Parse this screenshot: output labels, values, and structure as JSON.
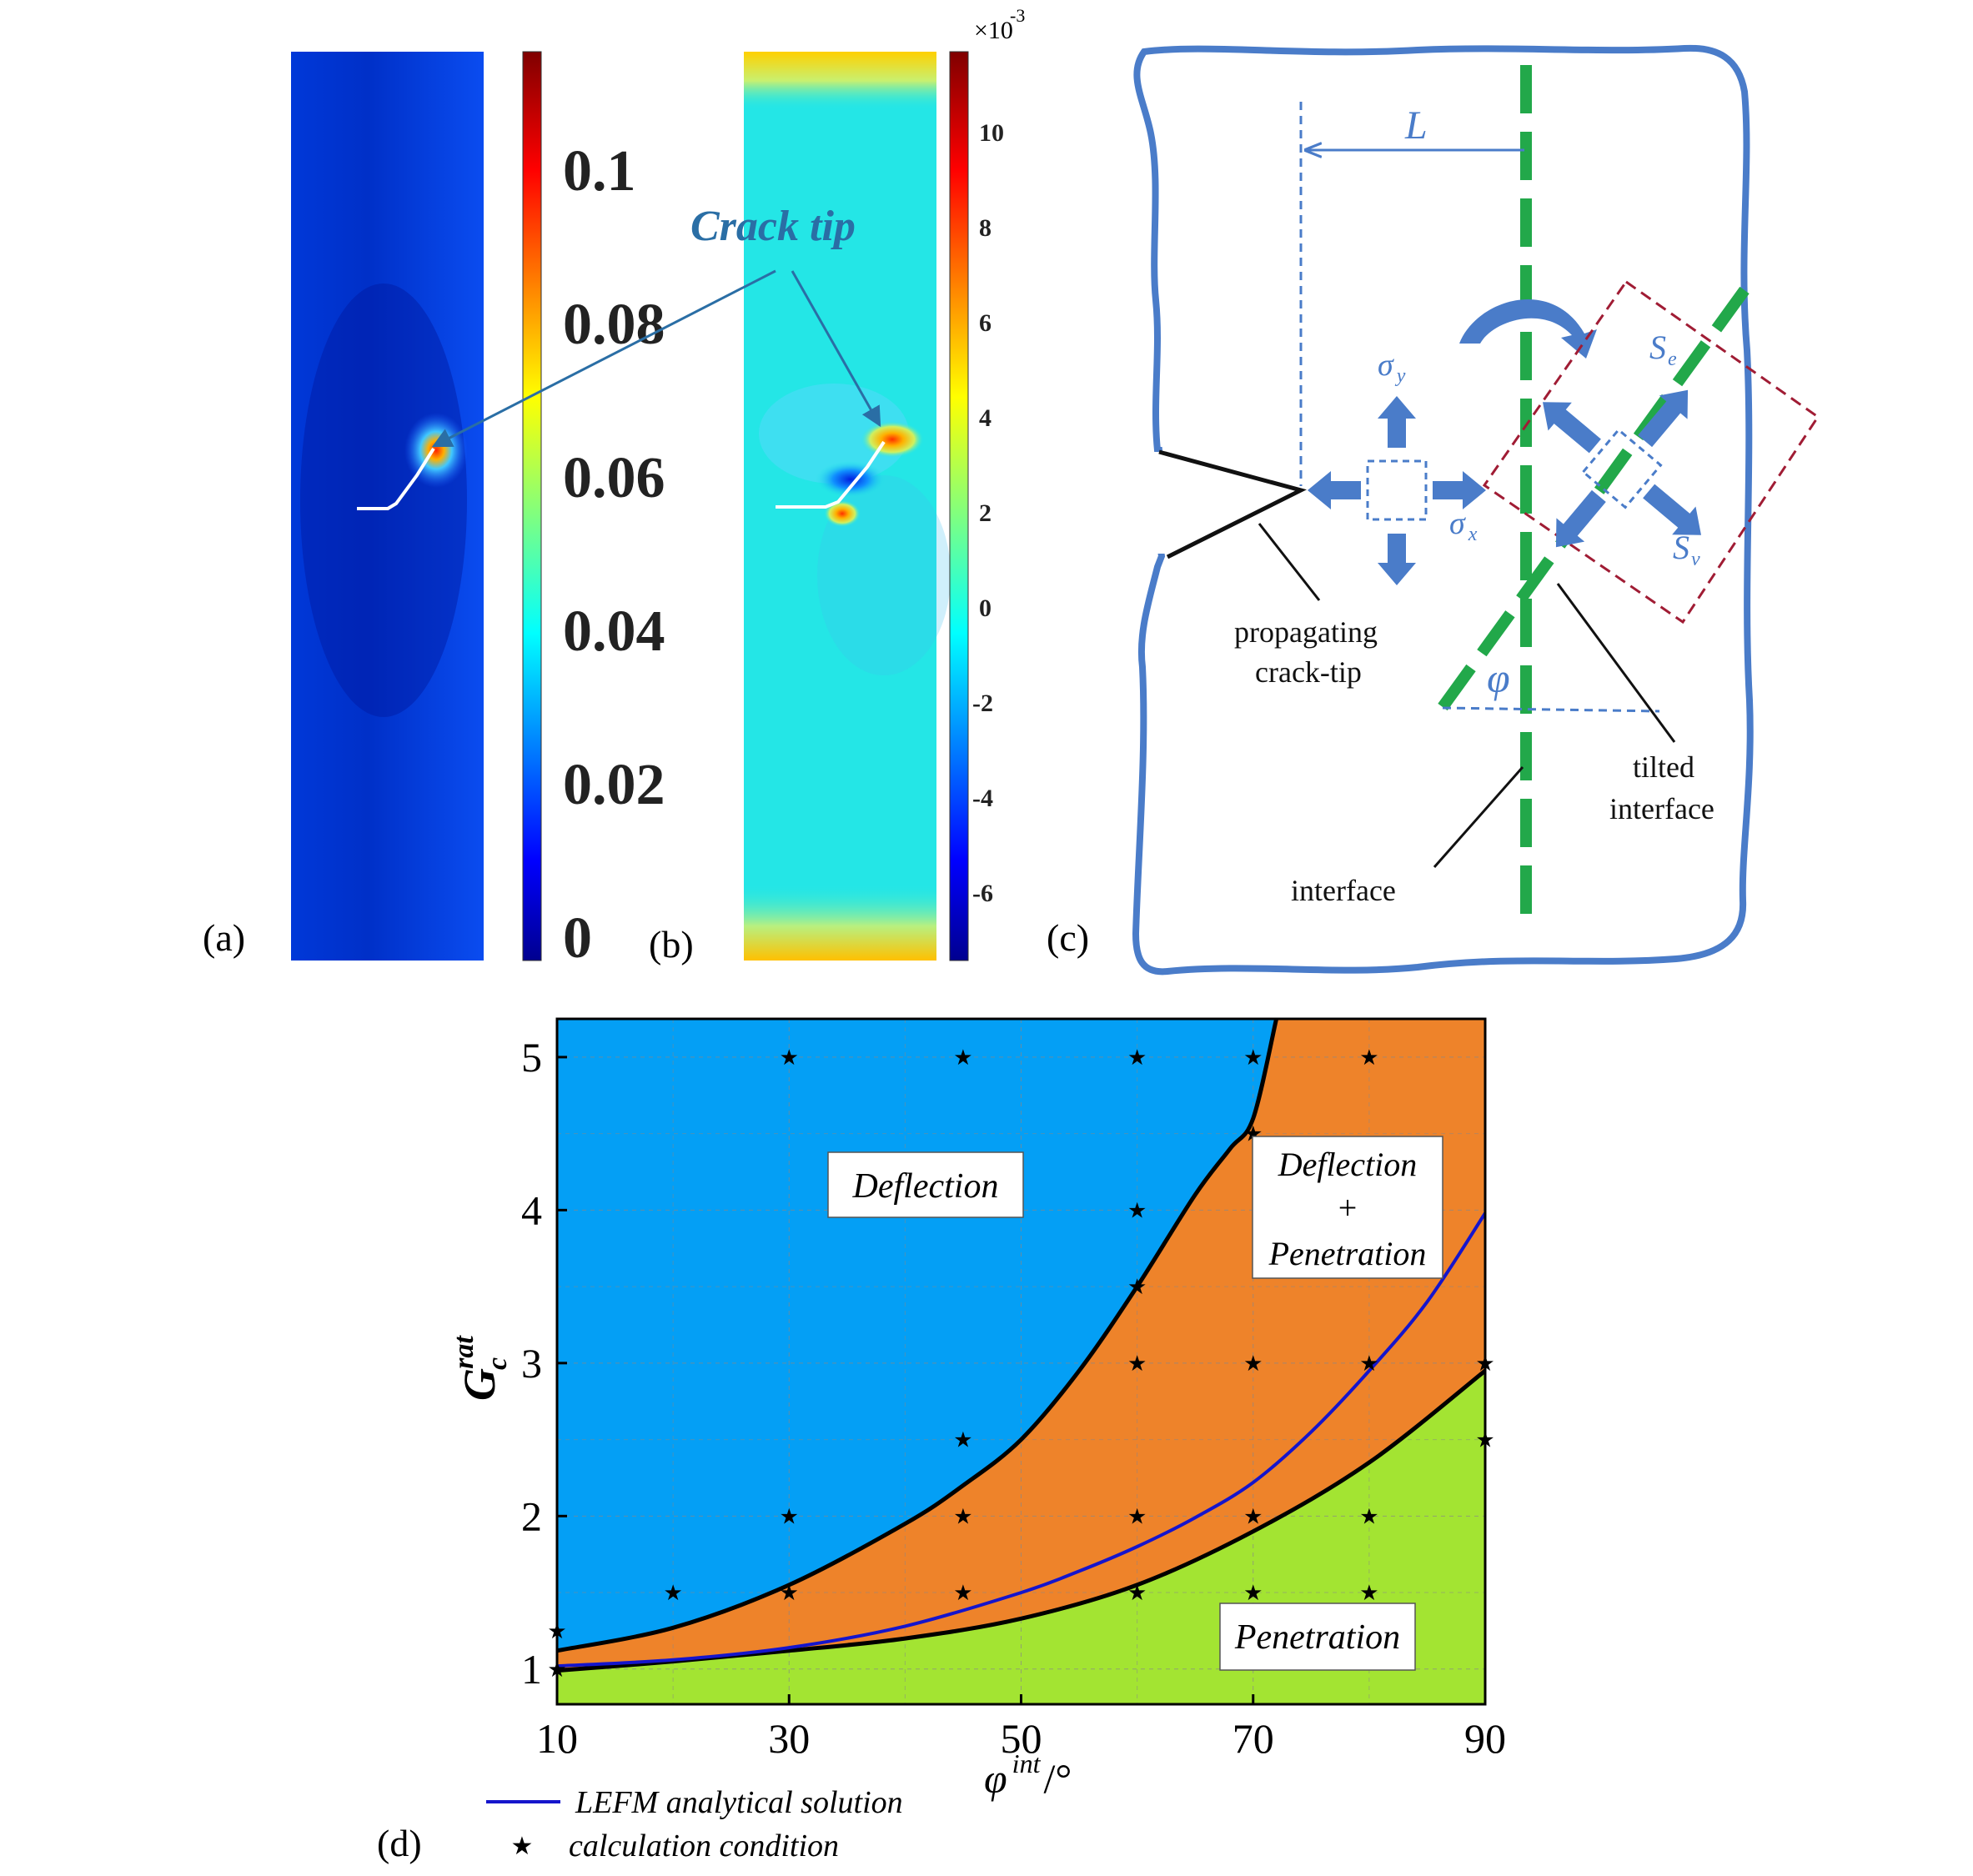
{
  "panels": {
    "a": {
      "label": "(a)",
      "colorbar_ticks": [
        "0.1",
        "0.08",
        "0.06",
        "0.04",
        "0.02",
        "0"
      ],
      "annotation": "Crack tip"
    },
    "b": {
      "label": "(b)",
      "colorbar_exponent_base": "×10",
      "colorbar_exponent": "-3",
      "colorbar_ticks": [
        "10",
        "8",
        "6",
        "4",
        "2",
        "0",
        "-2",
        "-4",
        "-6"
      ]
    },
    "c": {
      "label": "(c)",
      "L": "L",
      "sigma": "σ",
      "sigma_y_sub": "y",
      "sigma_x_sub": "x",
      "S": "S",
      "S_e_sub": "e",
      "S_v_sub": "v",
      "phi": "φ",
      "crack_tip_line1": "propagating",
      "crack_tip_line2": "crack-tip",
      "tilted_line1": "tilted",
      "tilted_line2": "interface",
      "interface": "interface"
    },
    "d": {
      "label": "(d)",
      "regions": {
        "deflection": "Deflection",
        "mixed_line1": "Deflection",
        "mixed_line2": "+",
        "mixed_line3": "Penetration",
        "penetration": "Penetration"
      },
      "x_label_sym": "φ",
      "x_label_sup": "int",
      "x_label_unit": "/°",
      "y_label_sym": "G",
      "y_label_sub": "c",
      "y_label_sup": "rat",
      "legend": {
        "line": "LEFM analytical solution",
        "star": "calculation condition"
      }
    }
  },
  "chart_data": {
    "type": "area",
    "xlabel": "φ int /°",
    "ylabel": "G c rat",
    "xlim": [
      10,
      90
    ],
    "ylim": [
      0.77,
      5.25
    ],
    "x_ticks": [
      10,
      30,
      50,
      70,
      90
    ],
    "y_ticks": [
      1,
      2,
      3,
      4,
      5
    ],
    "grid": true,
    "legend_position": "bottom-left",
    "colors": {
      "deflection": "#049ff5",
      "mixed": "#ee832a",
      "penetration": "#a3e432",
      "analytical": "#1515cc",
      "boundary": "#000000"
    },
    "upper_boundary": {
      "x": [
        10,
        20,
        30,
        40,
        45,
        50,
        55,
        60,
        65,
        68,
        70,
        72
      ],
      "y": [
        1.12,
        1.27,
        1.55,
        1.95,
        2.2,
        2.5,
        2.95,
        3.5,
        4.1,
        4.4,
        4.6,
        5.25
      ]
    },
    "lower_boundary": {
      "x": [
        10,
        20,
        30,
        40,
        50,
        60,
        70,
        80,
        90
      ],
      "y": [
        0.99,
        1.05,
        1.12,
        1.2,
        1.33,
        1.55,
        1.9,
        2.35,
        2.95
      ]
    },
    "series": [
      {
        "name": "LEFM analytical solution",
        "x": [
          10,
          20,
          30,
          40,
          50,
          55,
          60,
          65,
          70,
          75,
          80,
          85,
          90
        ],
        "y": [
          1.02,
          1.06,
          1.14,
          1.28,
          1.5,
          1.64,
          1.8,
          1.99,
          2.22,
          2.55,
          2.95,
          3.4,
          3.98
        ]
      },
      {
        "name": "calculation condition",
        "points": [
          [
            10,
            1.25
          ],
          [
            10,
            1.0
          ],
          [
            20,
            1.5
          ],
          [
            30,
            5
          ],
          [
            30,
            2
          ],
          [
            30,
            1.5
          ],
          [
            45,
            5
          ],
          [
            45,
            2.5
          ],
          [
            45,
            2
          ],
          [
            45,
            1.5
          ],
          [
            60,
            5
          ],
          [
            60,
            4
          ],
          [
            60,
            3.5
          ],
          [
            60,
            3
          ],
          [
            60,
            2
          ],
          [
            60,
            1.5
          ],
          [
            70,
            5
          ],
          [
            70,
            4.5
          ],
          [
            70,
            3
          ],
          [
            70,
            2
          ],
          [
            70,
            1.5
          ],
          [
            80,
            5
          ],
          [
            80,
            3
          ],
          [
            80,
            2
          ],
          [
            80,
            1.5
          ],
          [
            90,
            3
          ],
          [
            90,
            2.5
          ]
        ]
      }
    ]
  }
}
